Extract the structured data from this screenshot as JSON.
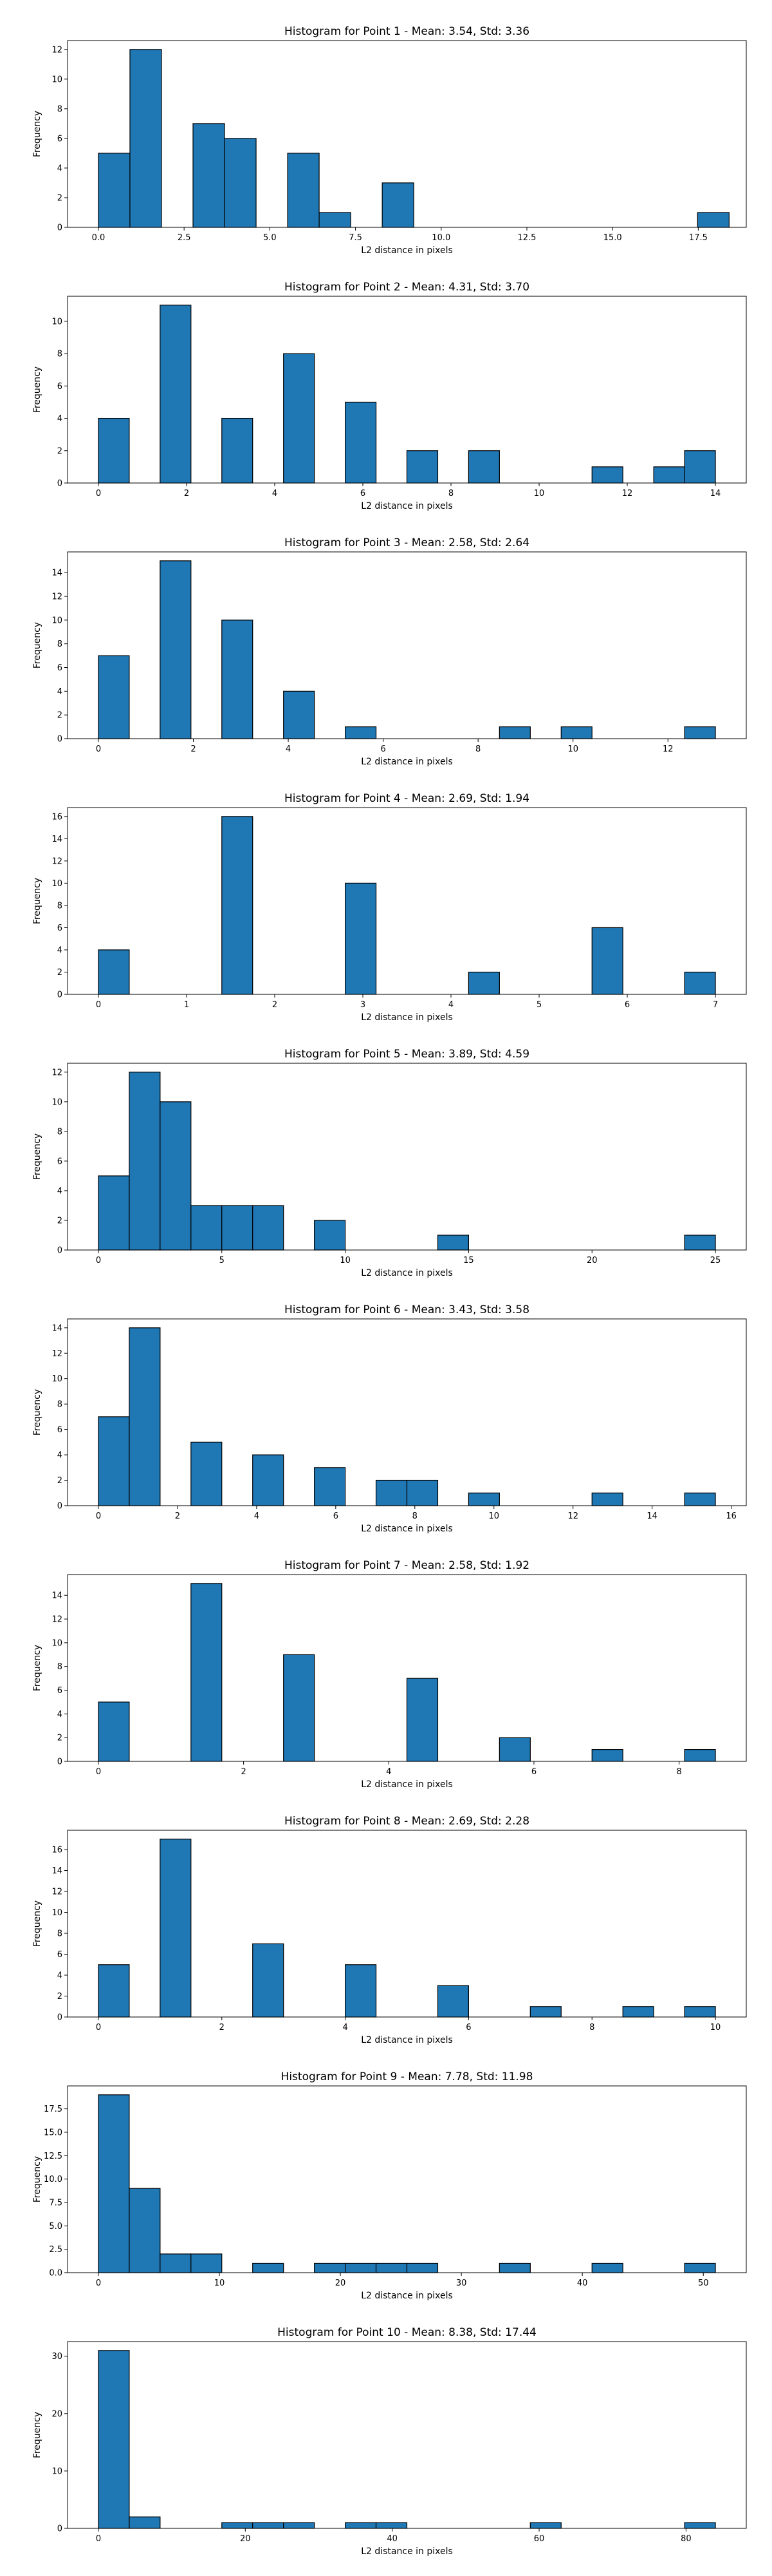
{
  "colors": {
    "bar": "#1f77b4",
    "edge": "#000000",
    "axes": "#000000",
    "background": "#ffffff"
  },
  "chart_data": [
    {
      "type": "bar",
      "title": "Histogram for Point 1 - Mean: 3.54, Std: 3.36",
      "xlabel": "L2 distance in pixels",
      "ylabel": "Frequency",
      "xlim": [
        -0.9,
        18.9
      ],
      "ylim": [
        0,
        12.6
      ],
      "xticks": [
        0.0,
        2.5,
        5.0,
        7.5,
        10.0,
        12.5,
        15.0,
        17.5
      ],
      "xticklabels": [
        "0.0",
        "2.5",
        "5.0",
        "7.5",
        "10.0",
        "12.5",
        "15.0",
        "17.5"
      ],
      "yticks": [
        0,
        2,
        4,
        6,
        8,
        10,
        12
      ],
      "yticklabels": [
        "0",
        "2",
        "4",
        "6",
        "8",
        "10",
        "12"
      ],
      "bin_edges": [
        0.0,
        0.92,
        1.84,
        2.76,
        3.68,
        4.6,
        5.52,
        6.44,
        7.36,
        8.28,
        9.2,
        10.12,
        11.04,
        11.96,
        12.88,
        13.8,
        14.72,
        15.64,
        16.56,
        17.48,
        18.4
      ],
      "counts": [
        5,
        12,
        0,
        7,
        6,
        0,
        5,
        1,
        0,
        3,
        0,
        0,
        0,
        0,
        0,
        0,
        0,
        0,
        0,
        1
      ]
    },
    {
      "type": "bar",
      "title": "Histogram for Point 2 - Mean: 4.31, Std: 3.70",
      "xlabel": "L2 distance in pixels",
      "ylabel": "Frequency",
      "xlim": [
        -0.7,
        14.7
      ],
      "ylim": [
        0,
        11.55
      ],
      "xticks": [
        0,
        2,
        4,
        6,
        8,
        10,
        12,
        14
      ],
      "xticklabels": [
        "0",
        "2",
        "4",
        "6",
        "8",
        "10",
        "12",
        "14"
      ],
      "yticks": [
        0,
        2,
        4,
        6,
        8,
        10
      ],
      "yticklabels": [
        "0",
        "2",
        "4",
        "6",
        "8",
        "10"
      ],
      "bin_edges": [
        0.0,
        0.7,
        1.4,
        2.1,
        2.8,
        3.5,
        4.2,
        4.9,
        5.6,
        6.3,
        7.0,
        7.7,
        8.4,
        9.1,
        9.8,
        10.5,
        11.2,
        11.9,
        12.6,
        13.3,
        14.0
      ],
      "counts": [
        4,
        0,
        11,
        0,
        4,
        0,
        8,
        0,
        5,
        0,
        2,
        0,
        2,
        0,
        0,
        0,
        1,
        0,
        1,
        2
      ]
    },
    {
      "type": "bar",
      "title": "Histogram for Point 3 - Mean: 2.58, Std: 2.64",
      "xlabel": "L2 distance in pixels",
      "ylabel": "Frequency",
      "xlim": [
        -0.65,
        13.65
      ],
      "ylim": [
        0,
        15.75
      ],
      "xticks": [
        0,
        2,
        4,
        6,
        8,
        10,
        12
      ],
      "xticklabels": [
        "0",
        "2",
        "4",
        "6",
        "8",
        "10",
        "12"
      ],
      "yticks": [
        0,
        2,
        4,
        6,
        8,
        10,
        12,
        14
      ],
      "yticklabels": [
        "0",
        "2",
        "4",
        "6",
        "8",
        "10",
        "12",
        "14"
      ],
      "bin_edges": [
        0.0,
        0.65,
        1.3,
        1.95,
        2.6,
        3.25,
        3.9,
        4.55,
        5.2,
        5.85,
        6.5,
        7.15,
        7.8,
        8.45,
        9.1,
        9.75,
        10.4,
        11.05,
        11.7,
        12.35,
        13.0
      ],
      "counts": [
        7,
        0,
        15,
        0,
        10,
        0,
        4,
        0,
        1,
        0,
        0,
        0,
        0,
        1,
        0,
        1,
        0,
        0,
        0,
        1
      ]
    },
    {
      "type": "bar",
      "title": "Histogram for Point 4 - Mean: 2.69, Std: 1.94",
      "xlabel": "L2 distance in pixels",
      "ylabel": "Frequency",
      "xlim": [
        -0.35,
        7.35
      ],
      "ylim": [
        0,
        16.8
      ],
      "xticks": [
        0,
        1,
        2,
        3,
        4,
        5,
        6,
        7
      ],
      "xticklabels": [
        "0",
        "1",
        "2",
        "3",
        "4",
        "5",
        "6",
        "7"
      ],
      "yticks": [
        0,
        2,
        4,
        6,
        8,
        10,
        12,
        14,
        16
      ],
      "yticklabels": [
        "0",
        "2",
        "4",
        "6",
        "8",
        "10",
        "12",
        "14",
        "16"
      ],
      "bin_edges": [
        0.0,
        0.35,
        0.7,
        1.05,
        1.4,
        1.75,
        2.1,
        2.45,
        2.8,
        3.15,
        3.5,
        3.85,
        4.2,
        4.55,
        4.9,
        5.25,
        5.6,
        5.95,
        6.3,
        6.65,
        7.0
      ],
      "counts": [
        4,
        0,
        0,
        0,
        16,
        0,
        0,
        0,
        10,
        0,
        0,
        0,
        2,
        0,
        0,
        0,
        6,
        0,
        0,
        2
      ]
    },
    {
      "type": "bar",
      "title": "Histogram for Point 5 - Mean: 3.89, Std: 4.59",
      "xlabel": "L2 distance in pixels",
      "ylabel": "Frequency",
      "xlim": [
        -1.25,
        26.25
      ],
      "ylim": [
        0,
        12.6
      ],
      "xticks": [
        0,
        5,
        10,
        15,
        20,
        25
      ],
      "xticklabels": [
        "0",
        "5",
        "10",
        "15",
        "20",
        "25"
      ],
      "yticks": [
        0,
        2,
        4,
        6,
        8,
        10,
        12
      ],
      "yticklabels": [
        "0",
        "2",
        "4",
        "6",
        "8",
        "10",
        "12"
      ],
      "bin_edges": [
        0.0,
        1.25,
        2.5,
        3.75,
        5.0,
        6.25,
        7.5,
        8.75,
        10.0,
        11.25,
        12.5,
        13.75,
        15.0,
        16.25,
        17.5,
        18.75,
        20.0,
        21.25,
        22.5,
        23.75,
        25.0
      ],
      "counts": [
        5,
        12,
        10,
        3,
        3,
        3,
        0,
        2,
        0,
        0,
        0,
        1,
        0,
        0,
        0,
        0,
        0,
        0,
        0,
        1
      ]
    },
    {
      "type": "bar",
      "title": "Histogram for Point 6 - Mean: 3.43, Std: 3.58",
      "xlabel": "L2 distance in pixels",
      "ylabel": "Frequency",
      "xlim": [
        -0.78,
        16.38
      ],
      "ylim": [
        0,
        14.7
      ],
      "xticks": [
        0,
        2,
        4,
        6,
        8,
        10,
        12,
        14,
        16
      ],
      "xticklabels": [
        "0",
        "2",
        "4",
        "6",
        "8",
        "10",
        "12",
        "14",
        "16"
      ],
      "yticks": [
        0,
        2,
        4,
        6,
        8,
        10,
        12,
        14
      ],
      "yticklabels": [
        "0",
        "2",
        "4",
        "6",
        "8",
        "10",
        "12",
        "14"
      ],
      "bin_edges": [
        0.0,
        0.78,
        1.56,
        2.34,
        3.12,
        3.9,
        4.68,
        5.46,
        6.24,
        7.02,
        7.8,
        8.58,
        9.36,
        10.14,
        10.92,
        11.7,
        12.48,
        13.26,
        14.04,
        14.82,
        15.6
      ],
      "counts": [
        7,
        14,
        0,
        5,
        0,
        4,
        0,
        3,
        0,
        2,
        2,
        0,
        1,
        0,
        0,
        0,
        1,
        0,
        0,
        1
      ]
    },
    {
      "type": "bar",
      "title": "Histogram for Point 7 - Mean: 2.58, Std: 1.92",
      "xlabel": "L2 distance in pixels",
      "ylabel": "Frequency",
      "xlim": [
        -0.425,
        8.925
      ],
      "ylim": [
        0,
        15.75
      ],
      "xticks": [
        0,
        2,
        4,
        6,
        8
      ],
      "xticklabels": [
        "0",
        "2",
        "4",
        "6",
        "8"
      ],
      "yticks": [
        0,
        2,
        4,
        6,
        8,
        10,
        12,
        14
      ],
      "yticklabels": [
        "0",
        "2",
        "4",
        "6",
        "8",
        "10",
        "12",
        "14"
      ],
      "bin_edges": [
        0.0,
        0.425,
        0.85,
        1.275,
        1.7,
        2.125,
        2.55,
        2.975,
        3.4,
        3.825,
        4.25,
        4.675,
        5.1,
        5.525,
        5.95,
        6.375,
        6.8,
        7.225,
        7.65,
        8.075,
        8.5
      ],
      "counts": [
        5,
        0,
        0,
        15,
        0,
        0,
        9,
        0,
        0,
        0,
        7,
        0,
        0,
        2,
        0,
        0,
        1,
        0,
        0,
        1
      ]
    },
    {
      "type": "bar",
      "title": "Histogram for Point 8 - Mean: 2.69, Std: 2.28",
      "xlabel": "L2 distance in pixels",
      "ylabel": "Frequency",
      "xlim": [
        -0.5,
        10.5
      ],
      "ylim": [
        0,
        17.85
      ],
      "xticks": [
        0,
        2,
        4,
        6,
        8,
        10
      ],
      "xticklabels": [
        "0",
        "2",
        "4",
        "6",
        "8",
        "10"
      ],
      "yticks": [
        0,
        2,
        4,
        6,
        8,
        10,
        12,
        14,
        16
      ],
      "yticklabels": [
        "0",
        "2",
        "4",
        "6",
        "8",
        "10",
        "12",
        "14",
        "16"
      ],
      "bin_edges": [
        0.0,
        0.5,
        1.0,
        1.5,
        2.0,
        2.5,
        3.0,
        3.5,
        4.0,
        4.5,
        5.0,
        5.5,
        6.0,
        6.5,
        7.0,
        7.5,
        8.0,
        8.5,
        9.0,
        9.5,
        10.0
      ],
      "counts": [
        5,
        0,
        17,
        0,
        0,
        7,
        0,
        0,
        5,
        0,
        0,
        3,
        0,
        0,
        1,
        0,
        0,
        1,
        0,
        1
      ]
    },
    {
      "type": "bar",
      "title": "Histogram for Point 9 - Mean: 7.78, Std: 11.98",
      "xlabel": "L2 distance in pixels",
      "ylabel": "Frequency",
      "xlim": [
        -2.55,
        53.55
      ],
      "ylim": [
        0,
        19.95
      ],
      "xticks": [
        0,
        10,
        20,
        30,
        40,
        50
      ],
      "xticklabels": [
        "0",
        "10",
        "20",
        "30",
        "40",
        "50"
      ],
      "yticks": [
        0,
        2.5,
        5,
        7.5,
        10,
        12.5,
        15,
        17.5
      ],
      "yticklabels": [
        "0.0",
        "2.5",
        "5.0",
        "7.5",
        "10.0",
        "12.5",
        "15.0",
        "17.5"
      ],
      "bin_edges": [
        0.0,
        2.55,
        5.1,
        7.65,
        10.2,
        12.75,
        15.3,
        17.85,
        20.4,
        22.95,
        25.5,
        28.05,
        30.6,
        33.15,
        35.7,
        38.25,
        40.8,
        43.35,
        45.9,
        48.45,
        51.0
      ],
      "counts": [
        19,
        9,
        2,
        2,
        0,
        1,
        0,
        1,
        1,
        1,
        1,
        0,
        0,
        1,
        0,
        0,
        1,
        0,
        0,
        1
      ]
    },
    {
      "type": "bar",
      "title": "Histogram for Point 10 - Mean: 8.38, Std: 17.44",
      "xlabel": "L2 distance in pixels",
      "ylabel": "Frequency",
      "xlim": [
        -4.2,
        88.2
      ],
      "ylim": [
        0,
        32.55
      ],
      "xticks": [
        0,
        20,
        40,
        60,
        80
      ],
      "xticklabels": [
        "0",
        "20",
        "40",
        "60",
        "80"
      ],
      "yticks": [
        0,
        10,
        20,
        30
      ],
      "yticklabels": [
        "0",
        "10",
        "20",
        "30"
      ],
      "bin_edges": [
        0.0,
        4.2,
        8.4,
        12.6,
        16.8,
        21.0,
        25.2,
        29.4,
        33.6,
        37.8,
        42.0,
        46.2,
        50.4,
        54.6,
        58.8,
        63.0,
        67.2,
        71.4,
        75.6,
        79.8,
        84.0
      ],
      "counts": [
        31,
        2,
        0,
        0,
        1,
        1,
        1,
        0,
        1,
        1,
        0,
        0,
        0,
        0,
        1,
        0,
        0,
        0,
        0,
        1
      ]
    }
  ]
}
